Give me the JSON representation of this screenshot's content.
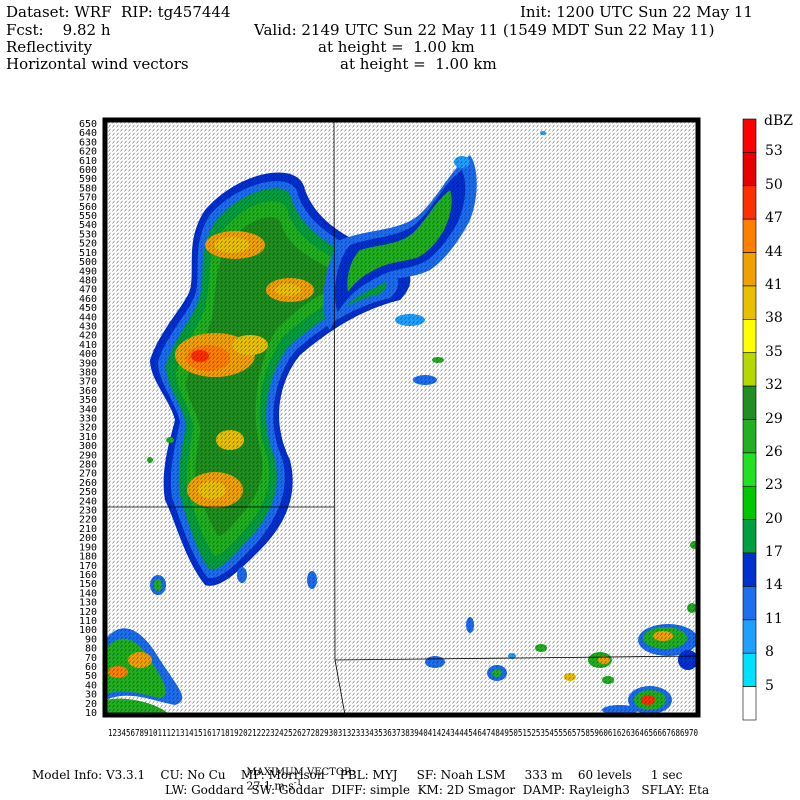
{
  "header": {
    "dataset": "Dataset: WRF  RIP: tg457444",
    "init": "Init: 1200 UTC Sun 22 May 11",
    "fcst": "Fcst:    9.82 h",
    "valid": "Valid: 2149 UTC Sun 22 May 11 (1549 MDT Sun 22 May 11)",
    "field1_name": "Reflectivity",
    "field1_height": "at height =  1.00 km",
    "field2_name": "Horizontal wind vectors",
    "field2_height": "at height =  1.00 km"
  },
  "axes": {
    "y_ticks": [
      10,
      20,
      30,
      40,
      50,
      60,
      70,
      80,
      90,
      100,
      110,
      120,
      130,
      140,
      150,
      160,
      170,
      180,
      190,
      200,
      210,
      220,
      230,
      240,
      250,
      260,
      270,
      280,
      290,
      300,
      310,
      320,
      330,
      340,
      350,
      360,
      370,
      380,
      390,
      400,
      410,
      420,
      430,
      440,
      450,
      460,
      470,
      480,
      490,
      500,
      510,
      520,
      530,
      540,
      550,
      560,
      570,
      580,
      590,
      600,
      610,
      620,
      630,
      640,
      650
    ],
    "x_ticks_text": "12345678910111213141516171819202122232425262728293031323334353637383940414243444546474849505152535455565758596061626364656667686970"
  },
  "colorbar": {
    "unit": "dBZ",
    "levels": [
      "53",
      "50",
      "47",
      "44",
      "41",
      "38",
      "35",
      "32",
      "29",
      "26",
      "23",
      "20",
      "17",
      "14",
      "11",
      "8",
      "5"
    ],
    "colors": [
      "#ff0000",
      "#e80000",
      "#ff3000",
      "#ff8000",
      "#f0a000",
      "#e8c000",
      "#ffff00",
      "#b4d800",
      "#208e20",
      "#22b022",
      "#22e022",
      "#00c800",
      "#00a040",
      "#0030d0",
      "#1e6ef0",
      "#1ea0ff",
      "#00e0ff",
      "#ffffff"
    ]
  },
  "footer": {
    "max_vector_label": "MAXIMUM VECTOR:",
    "max_vector_value": "27.1 m s",
    "max_vector_exp": "-1",
    "model_info": "Model Info: V3.3.1    CU: No Cu    MP: Morrison    PBL: MYJ     SF: Noah LSM     333 m    60 levels     1 sec",
    "physics": "LW: Goddard  SW: Goddar  DIFF: simple  KM: 2D Smagor  DAMP: Rayleigh3   SFLAY: Eta"
  }
}
